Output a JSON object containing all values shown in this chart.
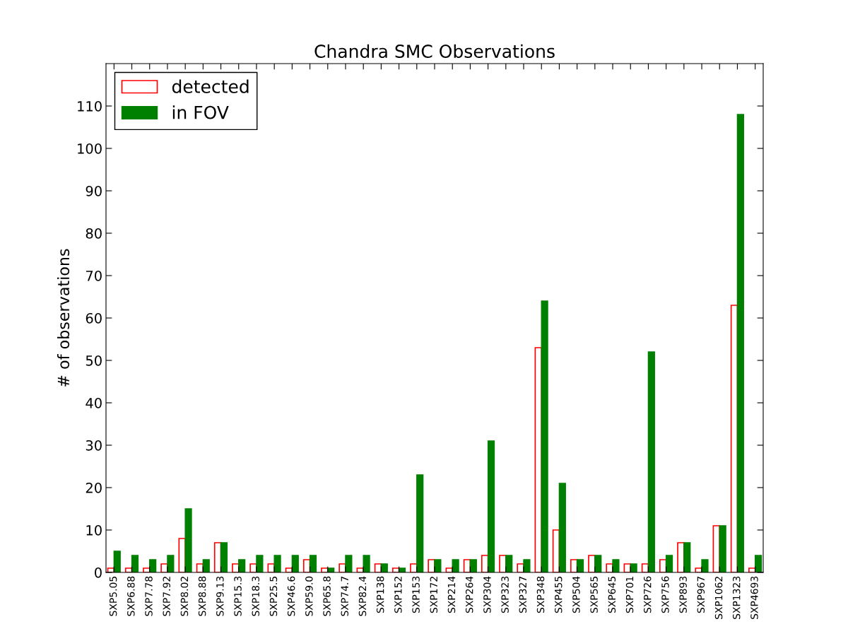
{
  "chart_data": {
    "type": "bar",
    "title": "Chandra SMC Observations",
    "ylabel": "# of observations",
    "categories": [
      "SXP5.05",
      "SXP6.88",
      "SXP7.78",
      "SXP7.92",
      "SXP8.02",
      "SXP8.88",
      "SXP9.13",
      "SXP15.3",
      "SXP18.3",
      "SXP25.5",
      "SXP46.6",
      "SXP59.0",
      "SXP65.8",
      "SXP74.7",
      "SXP82.4",
      "SXP138",
      "SXP152",
      "SXP153",
      "SXP172",
      "SXP214",
      "SXP264",
      "SXP304",
      "SXP323",
      "SXP327",
      "SXP348",
      "SXP455",
      "SXP504",
      "SXP565",
      "SXP645",
      "SXP701",
      "SXP726",
      "SXP756",
      "SXP893",
      "SXP967",
      "SXP1062",
      "SXP1323",
      "SXP4693"
    ],
    "series": [
      {
        "name": "detected",
        "color": "#ff0000",
        "values": [
          1,
          1,
          1,
          2,
          8,
          2,
          7,
          2,
          2,
          2,
          1,
          3,
          1,
          2,
          1,
          2,
          1,
          2,
          3,
          1,
          3,
          4,
          4,
          2,
          53,
          10,
          3,
          4,
          2,
          2,
          2,
          3,
          7,
          1,
          11,
          63,
          1
        ]
      },
      {
        "name": "in FOV",
        "color": "#008000",
        "values": [
          5,
          4,
          3,
          4,
          15,
          3,
          7,
          3,
          4,
          4,
          4,
          4,
          1,
          4,
          4,
          2,
          1,
          23,
          3,
          3,
          3,
          31,
          4,
          3,
          64,
          21,
          3,
          4,
          3,
          2,
          52,
          4,
          7,
          3,
          11,
          108,
          4
        ]
      }
    ],
    "ylim": [
      0,
      120
    ],
    "yticks": [
      0,
      10,
      20,
      30,
      40,
      50,
      60,
      70,
      80,
      90,
      100,
      110
    ],
    "grid": false,
    "legend": "top left"
  }
}
